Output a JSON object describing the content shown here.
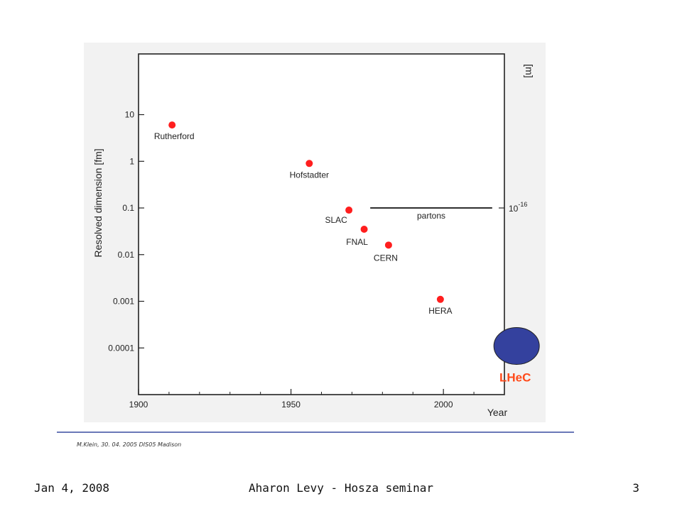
{
  "footer": {
    "date": "Jan 4, 2008",
    "title": "Aharon Levy - Hosza seminar",
    "page_number": "3"
  },
  "source_note": "M.Klein, 30. 04. 2005 DIS05 Madison",
  "colors": {
    "points": "#ff1e1e",
    "lhec_circle": "#34419e",
    "lhec_label": "#ff4a1a",
    "rule": "#6a78b8"
  },
  "chart_data": {
    "type": "scatter",
    "title": "",
    "xlabel": "Year",
    "ylabel": "Resolved dimension [fm]",
    "y2label": "[m]",
    "xlim": [
      1900,
      2020
    ],
    "x_ticks": [
      1900,
      1950,
      2000
    ],
    "y_scale": "log",
    "ylim": [
      1e-05,
      200
    ],
    "y_ticks": [
      {
        "value": 10,
        "label": "10"
      },
      {
        "value": 1,
        "label": "1"
      },
      {
        "value": 0.1,
        "label": "0.1"
      },
      {
        "value": 0.01,
        "label": "0.01"
      },
      {
        "value": 0.001,
        "label": "0.001"
      },
      {
        "value": 0.0001,
        "label": "0.0001"
      }
    ],
    "y2_ticks": [
      {
        "value": 0.1,
        "base": "10",
        "exp": "-16"
      }
    ],
    "grid": false,
    "points": [
      {
        "label": "Rutherford",
        "x": 1911,
        "y": 6
      },
      {
        "label": "Hofstadter",
        "x": 1956,
        "y": 0.9
      },
      {
        "label": "SLAC",
        "x": 1969,
        "y": 0.09
      },
      {
        "label": "FNAL",
        "x": 1974,
        "y": 0.035
      },
      {
        "label": "CERN",
        "x": 1982,
        "y": 0.016
      },
      {
        "label": "HERA",
        "x": 1999,
        "y": 0.0011
      }
    ],
    "annotations": [
      {
        "text": "partons",
        "x_start": 1976,
        "x_end": 2016,
        "y": 0.1
      }
    ],
    "highlight": {
      "label": "LHeC",
      "x": 2024,
      "y": 0.00011
    }
  }
}
